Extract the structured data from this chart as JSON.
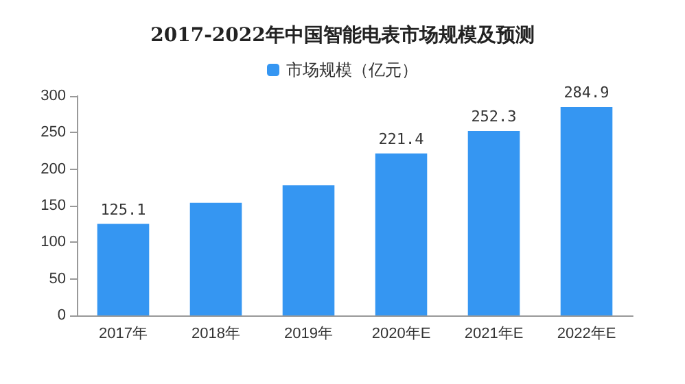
{
  "chart_data": {
    "type": "bar",
    "title": "2017-2022年中国智能电表市场规模及预测",
    "categories": [
      "2017年",
      "2018年",
      "2019年",
      "2020年E",
      "2021年E",
      "2022年E"
    ],
    "series": [
      {
        "name": "市场规模（亿元）",
        "color": "#3596f2",
        "values": [
          125.1,
          154,
          178,
          221.4,
          252.3,
          284.9
        ],
        "value_labels": [
          "125.1",
          null,
          null,
          "221.4",
          "252.3",
          "284.9"
        ]
      }
    ],
    "ylim": [
      0,
      300
    ],
    "yticks": [
      0,
      50,
      100,
      150,
      200,
      250,
      300
    ],
    "grid": false,
    "legend": "top"
  }
}
